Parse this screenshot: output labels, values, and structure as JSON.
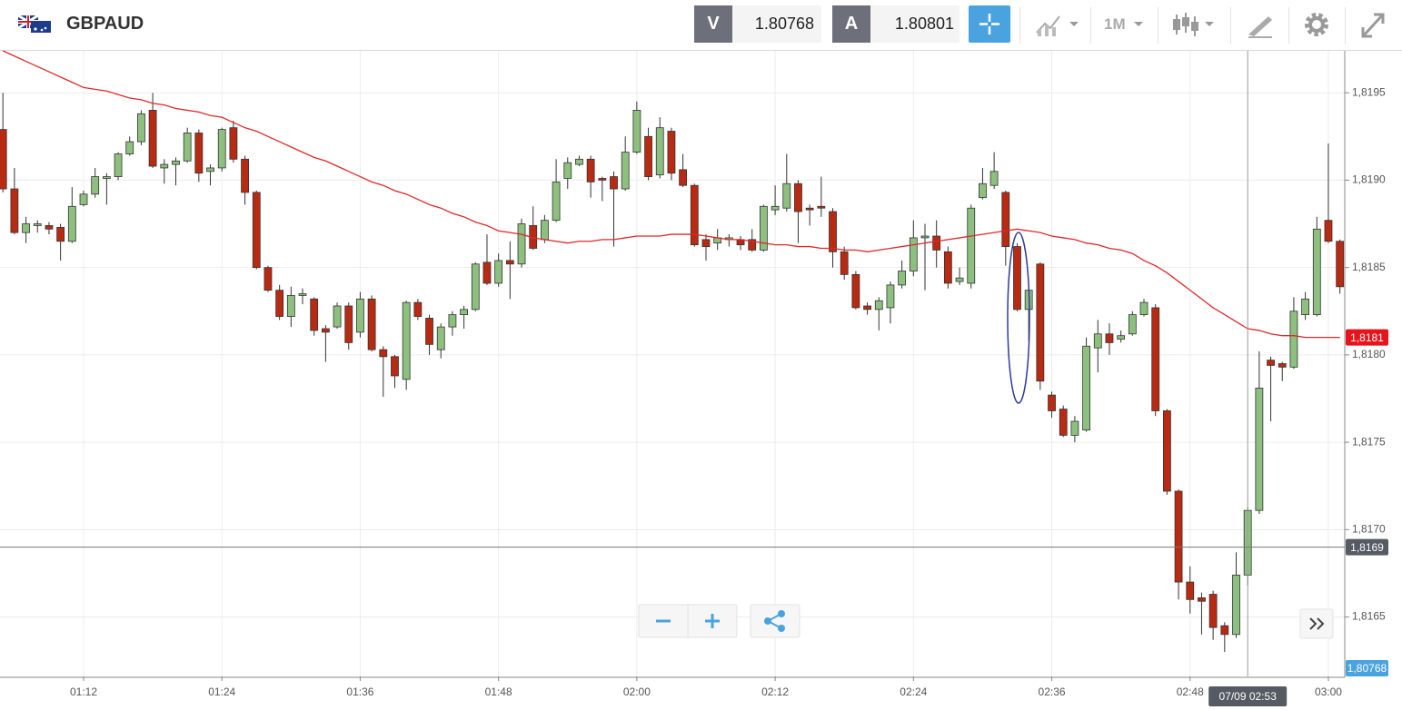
{
  "header": {
    "symbol": "GBPAUD",
    "bid_tag": "V",
    "bid": "1.80768",
    "ask_tag": "A",
    "ask": "1.80801",
    "timeframe": "1M"
  },
  "chart_data": {
    "type": "candlestick",
    "categories": [
      null,
      null,
      null,
      null,
      null,
      null,
      null,
      "01:12",
      null,
      null,
      null,
      null,
      null,
      null,
      null,
      null,
      null,
      null,
      null,
      "01:24",
      null,
      null,
      null,
      null,
      null,
      null,
      null,
      null,
      null,
      null,
      null,
      "01:36",
      null,
      null,
      null,
      null,
      null,
      null,
      null,
      null,
      null,
      null,
      null,
      "01:48",
      null,
      null,
      null,
      null,
      null,
      null,
      null,
      null,
      null,
      null,
      null,
      "02:00",
      null,
      null,
      null,
      null,
      null,
      null,
      null,
      null,
      null,
      null,
      null,
      "02:12",
      null,
      null,
      null,
      null,
      null,
      null,
      null,
      null,
      null,
      null,
      null,
      "02:24",
      null,
      null,
      null,
      null,
      null,
      null,
      null,
      null,
      null,
      null,
      null,
      "02:36",
      null,
      null,
      null,
      null,
      null,
      null,
      null,
      null,
      null,
      null,
      null,
      "02:48",
      null,
      null,
      null,
      null,
      null,
      null,
      null,
      null,
      null,
      null,
      null,
      "03:00",
      null
    ],
    "open": [
      1.81929,
      1.81895,
      1.8187,
      1.81874,
      1.81874,
      1.81873,
      1.81865,
      1.81886,
      1.81892,
      1.81901,
      1.81902,
      1.81915,
      1.81922,
      1.8194,
      1.81907,
      1.81909,
      1.81911,
      1.81927,
      1.81905,
      1.81907,
      1.8193,
      1.81912,
      1.81893,
      1.8185,
      1.81837,
      1.81822,
      1.81834,
      1.81832,
      1.81815,
      1.81816,
      1.81828,
      1.81813,
      1.81832,
      1.81803,
      1.81799,
      1.81786,
      1.8183,
      1.81821,
      1.81803,
      1.81816,
      1.81823,
      1.81826,
      1.81853,
      1.81841,
      1.81854,
      1.81852,
      1.81874,
      1.81866,
      1.81877,
      1.81901,
      1.81909,
      1.81912,
      1.81901,
      1.81902,
      1.81895,
      1.81916,
      1.81925,
      1.81903,
      1.81928,
      1.81906,
      1.81897,
      1.81866,
      1.81864,
      1.81866,
      1.81866,
      1.81866,
      1.8186,
      1.81883,
      1.81884,
      1.81898,
      1.81884,
      1.81885,
      1.81882,
      1.81859,
      1.81846,
      1.81828,
      1.81826,
      1.81827,
      1.8184,
      1.81848,
      1.81867,
      1.81868,
      1.81859,
      1.81842,
      1.81841,
      1.8189,
      1.81897,
      1.81893,
      1.81862,
      1.81826,
      1.81852,
      1.81777,
      1.81769,
      1.81754,
      1.81757,
      1.81804,
      1.81812,
      1.81809,
      1.81812,
      1.81823,
      1.81827,
      1.81768,
      1.81722,
      1.8167,
      1.81661,
      1.81663,
      1.81645,
      1.8164,
      1.81674,
      1.81711,
      1.81797,
      1.81795,
      1.81793,
      1.81823,
      1.81823,
      1.81877,
      1.81865
    ],
    "high": [
      1.8195,
      1.81907,
      1.81879,
      1.81877,
      1.81876,
      1.81875,
      1.81896,
      1.81894,
      1.81907,
      1.81904,
      1.81916,
      1.81925,
      1.8194,
      1.8195,
      1.81912,
      1.81913,
      1.8193,
      1.81929,
      1.81909,
      1.8193,
      1.81934,
      1.81914,
      1.81894,
      1.81851,
      1.8184,
      1.81839,
      1.81838,
      1.81833,
      1.81817,
      1.8183,
      1.8183,
      1.81836,
      1.81834,
      1.81805,
      1.818,
      1.81831,
      1.81832,
      1.81823,
      1.81818,
      1.81825,
      1.81828,
      1.81853,
      1.81869,
      1.81858,
      1.81865,
      1.81878,
      1.81885,
      1.8188,
      1.81912,
      1.81913,
      1.81914,
      1.81914,
      1.81902,
      1.81905,
      1.81925,
      1.81945,
      1.8193,
      1.81936,
      1.8193,
      1.81915,
      1.81898,
      1.81869,
      1.81872,
      1.81869,
      1.81868,
      1.81872,
      1.81886,
      1.81897,
      1.81915,
      1.819,
      1.81886,
      1.81902,
      1.81884,
      1.81862,
      1.81848,
      1.8183,
      1.81833,
      1.81842,
      1.81854,
      1.81877,
      1.81875,
      1.81877,
      1.81862,
      1.8185,
      1.81886,
      1.81907,
      1.81916,
      1.81894,
      1.81864,
      1.8184,
      1.81853,
      1.81779,
      1.81771,
      1.81765,
      1.8181,
      1.8182,
      1.81818,
      1.81814,
      1.81825,
      1.81832,
      1.81829,
      1.81769,
      1.81723,
      1.81679,
      1.81664,
      1.81665,
      1.81647,
      1.81687,
      1.81713,
      1.81802,
      1.81799,
      1.81796,
      1.81833,
      1.81836,
      1.81879,
      1.81921,
      1.81866
    ],
    "low": [
      1.81893,
      1.81869,
      1.81864,
      1.8187,
      1.81869,
      1.81854,
      1.81864,
      1.81885,
      1.8189,
      1.81886,
      1.819,
      1.81914,
      1.8192,
      1.81907,
      1.81898,
      1.81897,
      1.8191,
      1.81899,
      1.81897,
      1.81905,
      1.8191,
      1.81886,
      1.81849,
      1.81836,
      1.8182,
      1.81816,
      1.81829,
      1.81811,
      1.81796,
      1.81815,
      1.81803,
      1.8181,
      1.81802,
      1.81776,
      1.81781,
      1.8178,
      1.8182,
      1.818,
      1.81798,
      1.81811,
      1.81815,
      1.81825,
      1.8184,
      1.81839,
      1.81832,
      1.8185,
      1.8186,
      1.81864,
      1.81876,
      1.81895,
      1.81908,
      1.8189,
      1.81888,
      1.81862,
      1.81894,
      1.81915,
      1.819,
      1.81901,
      1.819,
      1.81896,
      1.81862,
      1.81854,
      1.8186,
      1.81862,
      1.8186,
      1.81859,
      1.81859,
      1.8188,
      1.81882,
      1.81864,
      1.81874,
      1.81879,
      1.8185,
      1.81843,
      1.81826,
      1.81823,
      1.81814,
      1.81818,
      1.81838,
      1.81845,
      1.81837,
      1.8185,
      1.81838,
      1.8184,
      1.81838,
      1.81889,
      1.81895,
      1.81851,
      1.81825,
      1.81808,
      1.8178,
      1.81764,
      1.81753,
      1.8175,
      1.81756,
      1.8179,
      1.818,
      1.81807,
      1.81811,
      1.81822,
      1.81765,
      1.8172,
      1.8166,
      1.81652,
      1.8164,
      1.81637,
      1.8163,
      1.81638,
      1.81668,
      1.81709,
      1.81762,
      1.81785,
      1.81792,
      1.8182,
      1.81822,
      1.81864,
      1.81835
    ],
    "close": [
      1.81895,
      1.8187,
      1.81875,
      1.81875,
      1.81872,
      1.81865,
      1.81885,
      1.81892,
      1.81902,
      1.81902,
      1.81915,
      1.81922,
      1.81938,
      1.81908,
      1.81909,
      1.81911,
      1.81927,
      1.81904,
      1.81907,
      1.81929,
      1.81912,
      1.81893,
      1.8185,
      1.81837,
      1.81822,
      1.81834,
      1.81835,
      1.81814,
      1.81813,
      1.81828,
      1.81807,
      1.81832,
      1.81803,
      1.81799,
      1.81788,
      1.8183,
      1.81822,
      1.81806,
      1.81816,
      1.81823,
      1.81826,
      1.81852,
      1.81841,
      1.81854,
      1.81852,
      1.81875,
      1.81861,
      1.81877,
      1.81899,
      1.8191,
      1.81912,
      1.81899,
      1.819,
      1.81895,
      1.81916,
      1.8194,
      1.81902,
      1.8193,
      1.81904,
      1.81897,
      1.81863,
      1.81862,
      1.81867,
      1.81867,
      1.81863,
      1.8186,
      1.81885,
      1.81885,
      1.81898,
      1.81882,
      1.81883,
      1.81884,
      1.81859,
      1.81846,
      1.81827,
      1.81826,
      1.81831,
      1.8184,
      1.81848,
      1.81867,
      1.81868,
      1.8186,
      1.81841,
      1.81844,
      1.81884,
      1.81898,
      1.81905,
      1.81862,
      1.81826,
      1.81837,
      1.81785,
      1.81768,
      1.81754,
      1.81762,
      1.81805,
      1.81812,
      1.81807,
      1.81811,
      1.81823,
      1.8183,
      1.81768,
      1.81722,
      1.8167,
      1.8166,
      1.81659,
      1.81644,
      1.8164,
      1.81674,
      1.81711,
      1.81781,
      1.81794,
      1.81793,
      1.81825,
      1.81832,
      1.81872,
      1.81865,
      1.81839
    ],
    "up_color": "#8dc07e",
    "down_color": "#b92a12",
    "ma": {
      "color": "#e0282a",
      "values": [
        1.81974,
        1.81971,
        1.81968,
        1.81965,
        1.81962,
        1.81959,
        1.81956,
        1.81953,
        1.81952,
        1.81951,
        1.81949,
        1.81947,
        1.81946,
        1.81944,
        1.81943,
        1.81941,
        1.8194,
        1.81939,
        1.81937,
        1.81936,
        1.81933,
        1.8193,
        1.81928,
        1.81925,
        1.81922,
        1.81919,
        1.81916,
        1.81913,
        1.81911,
        1.81908,
        1.81905,
        1.81902,
        1.81899,
        1.81897,
        1.81894,
        1.81892,
        1.81889,
        1.81886,
        1.81884,
        1.81881,
        1.81879,
        1.81876,
        1.81874,
        1.81871,
        1.8187,
        1.81869,
        1.81867,
        1.81866,
        1.81865,
        1.81864,
        1.81865,
        1.81865,
        1.81866,
        1.81866,
        1.81867,
        1.81868,
        1.81868,
        1.81868,
        1.81869,
        1.81869,
        1.81869,
        1.81868,
        1.81867,
        1.81866,
        1.81866,
        1.81865,
        1.81864,
        1.81863,
        1.81863,
        1.81862,
        1.81862,
        1.81861,
        1.81861,
        1.8186,
        1.8186,
        1.81859,
        1.8186,
        1.81861,
        1.81862,
        1.81863,
        1.81864,
        1.81865,
        1.81866,
        1.81867,
        1.81868,
        1.81869,
        1.8187,
        1.81871,
        1.81872,
        1.81871,
        1.8187,
        1.81868,
        1.81867,
        1.81866,
        1.81864,
        1.81863,
        1.81861,
        1.8186,
        1.81858,
        1.81854,
        1.81851,
        1.81847,
        1.81842,
        1.81837,
        1.81832,
        1.81827,
        1.81823,
        1.81819,
        1.81815,
        1.81814,
        1.81812,
        1.81811,
        1.81811,
        1.8181,
        1.8181,
        1.8181,
        1.8181
      ]
    },
    "ma_badge": {
      "value": 1.8181,
      "label": "1,8181"
    },
    "crosshair": {
      "x_label": "07/09 02:53",
      "y": {
        "value": 1.8169,
        "label": "1,8169"
      }
    },
    "bid_badge": "1,80768",
    "ylim": [
      1.81616,
      1.81974
    ],
    "yticks": [
      {
        "value": 1.8165,
        "label": "1,8165"
      },
      {
        "value": 1.817,
        "label": "1,8170"
      },
      {
        "value": 1.8175,
        "label": "1,8175"
      },
      {
        "value": 1.818,
        "label": "1,8180"
      },
      {
        "value": 1.8185,
        "label": "1,8185"
      },
      {
        "value": 1.819,
        "label": "1,8190"
      },
      {
        "value": 1.8195,
        "label": "1,8195"
      }
    ],
    "grid": true
  }
}
